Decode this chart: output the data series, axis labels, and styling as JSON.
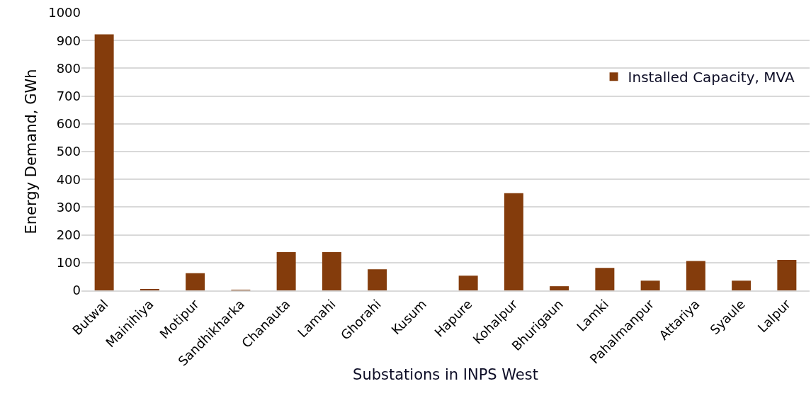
{
  "chart_data": {
    "type": "bar",
    "xlabel": "Substations in INPS West",
    "ylabel": "Energy Demand, GWh",
    "categories": [
      "Butwal",
      "Mainihiya",
      "Motipur",
      "Sandhikharka",
      "Chanauta",
      "Lamahi",
      "Ghorahi",
      "Kusum",
      "Hapure",
      "Kohalpur",
      "Bhurigaun",
      "Lamki",
      "Pahalmanpur",
      "Attariya",
      "Syaule",
      "Lalpur"
    ],
    "series": [
      {
        "name": "Installed Capacity, MVA",
        "color": "#843c0c",
        "values": [
          922,
          3,
          62,
          2,
          138,
          138,
          76,
          0,
          53,
          350,
          15,
          81,
          35,
          106,
          35,
          110
        ]
      }
    ],
    "ylim": [
      0,
      1000
    ],
    "yticks": [
      0,
      100,
      200,
      300,
      400,
      500,
      600,
      700,
      800,
      900,
      1000
    ],
    "grid": "y",
    "legend": "top right"
  }
}
